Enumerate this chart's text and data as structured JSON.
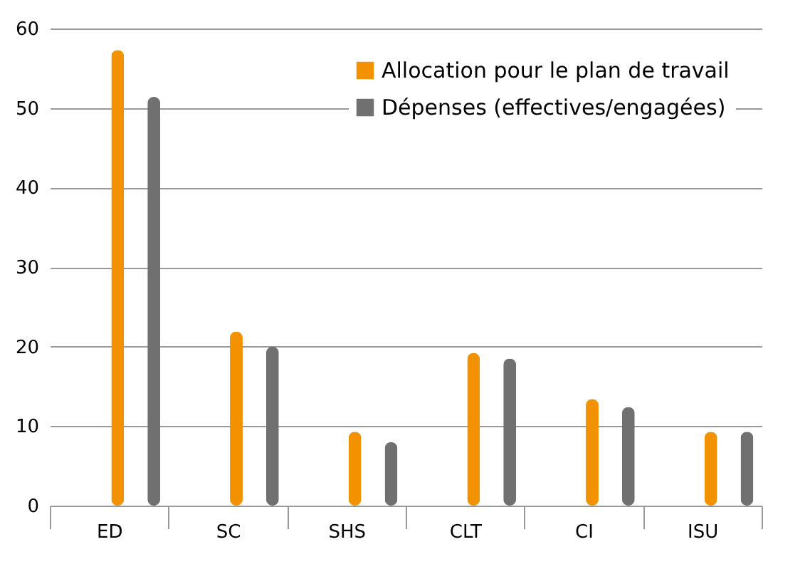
{
  "chart_data": {
    "type": "bar",
    "categories": [
      "ED",
      "SC",
      "SHS",
      "CLT",
      "CI",
      "ISU"
    ],
    "series": [
      {
        "name": "Allocation pour le plan de travail",
        "color": "#f39200",
        "values": [
          57.3,
          21.9,
          9.3,
          19.2,
          13.4,
          9.3
        ]
      },
      {
        "name": "Dépenses (effectives/engagées)",
        "color": "#707070",
        "values": [
          51.4,
          20,
          8,
          18.5,
          12.4,
          9.3
        ]
      }
    ],
    "ylim": [
      0,
      60
    ],
    "yticks": [
      0,
      10,
      20,
      30,
      40,
      50,
      60
    ],
    "grid": "y",
    "legend": "top right"
  }
}
